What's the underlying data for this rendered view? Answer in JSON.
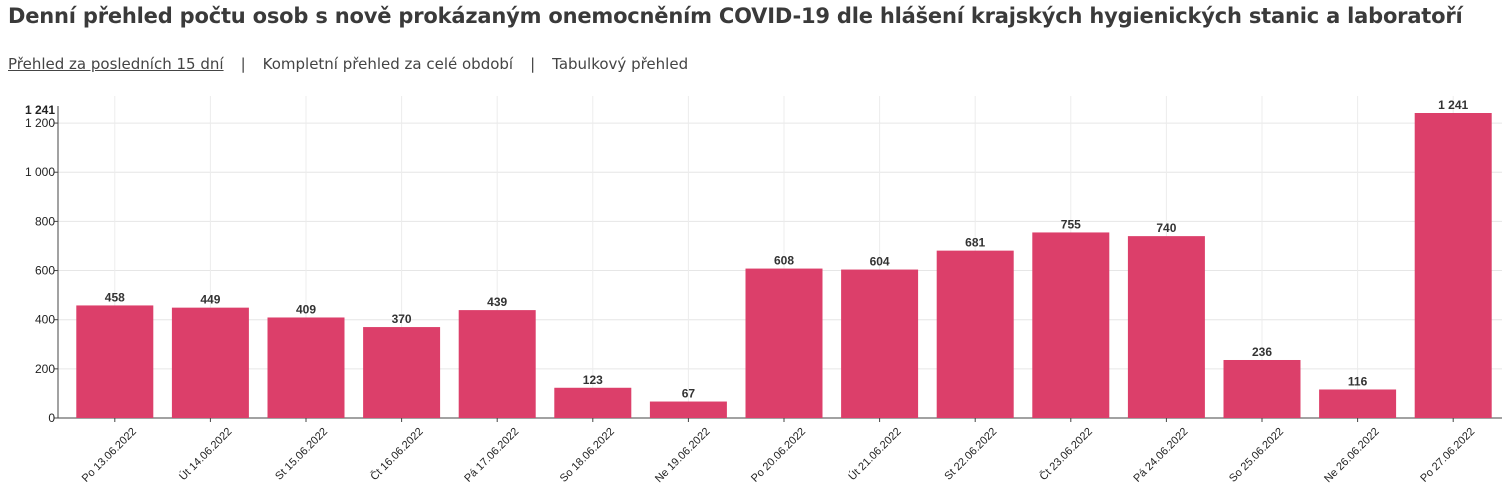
{
  "title": "Denní přehled počtu osob s nově prokázaným onemocněním COVID-19 dle hlášení krajských hygienických stanic a laboratoří",
  "tabs": [
    {
      "label": "Přehled za posledních 15 dní",
      "active": true
    },
    {
      "label": "Kompletní přehled za celé období",
      "active": false
    },
    {
      "label": "Tabulkový přehled",
      "active": false
    }
  ],
  "separator": "|",
  "chart_data": {
    "type": "bar",
    "categories": [
      "Po 13.06.2022",
      "Út 14.06.2022",
      "St 15.06.2022",
      "Čt 16.06.2022",
      "Pá 17.06.2022",
      "So 18.06.2022",
      "Ne 19.06.2022",
      "Po 20.06.2022",
      "Út 21.06.2022",
      "St 22.06.2022",
      "Čt 23.06.2022",
      "Pá 24.06.2022",
      "So 25.06.2022",
      "Ne 26.06.2022",
      "Po 27.06.2022"
    ],
    "values": [
      458,
      449,
      409,
      370,
      439,
      123,
      67,
      608,
      604,
      681,
      755,
      740,
      236,
      116,
      1241
    ],
    "value_labels": [
      "458",
      "449",
      "409",
      "370",
      "439",
      "123",
      "67",
      "608",
      "604",
      "681",
      "755",
      "740",
      "236",
      "116",
      "1 241"
    ],
    "y_ticks": [
      0,
      200,
      400,
      600,
      800,
      1000,
      1200
    ],
    "y_tick_labels": [
      "0",
      "200",
      "400",
      "600",
      "800",
      "1 000",
      "1 200"
    ],
    "y_max_label": "1 241",
    "ylim": [
      0,
      1241
    ],
    "grid": true,
    "color": "#dc3f6a",
    "title": "",
    "xlabel": "",
    "ylabel": ""
  }
}
